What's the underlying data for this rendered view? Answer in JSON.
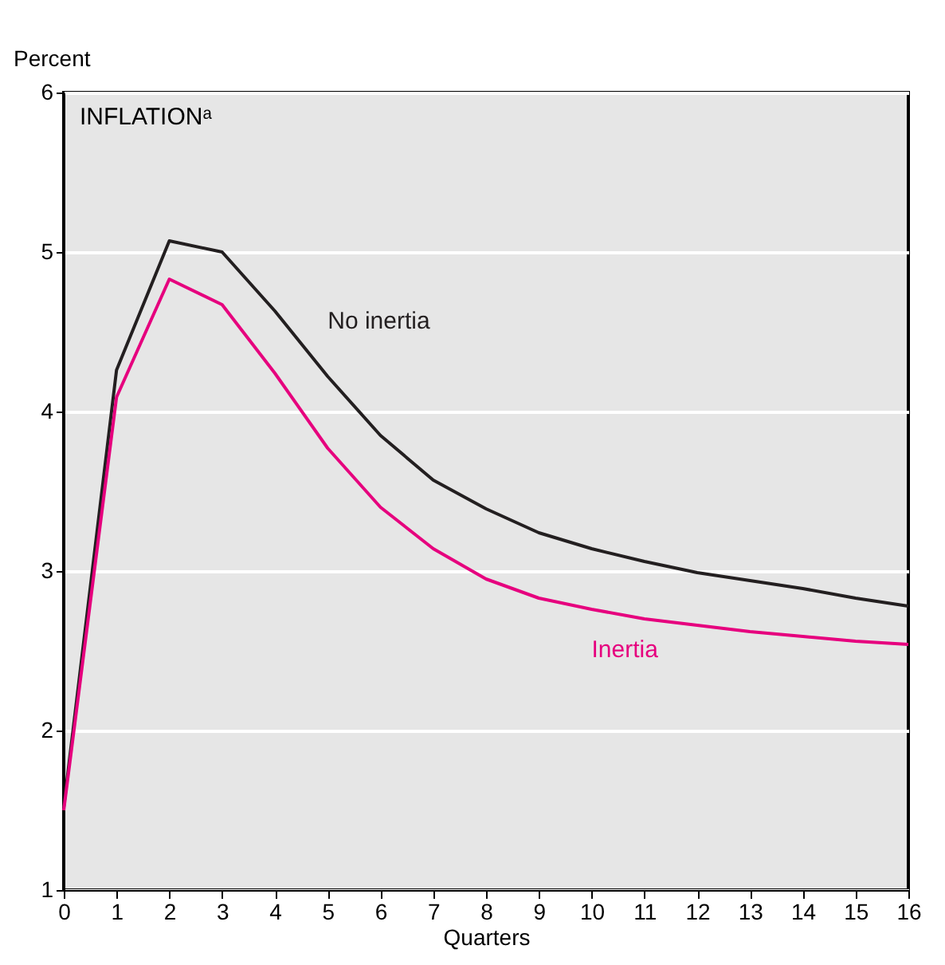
{
  "chart_data": {
    "type": "line",
    "ylabel": "Percent",
    "xlabel": "Quarters",
    "annotations": [
      "INFLATIONᵃ"
    ],
    "x": [
      0,
      1,
      2,
      3,
      4,
      5,
      6,
      7,
      8,
      9,
      10,
      11,
      12,
      13,
      14,
      15,
      16
    ],
    "series": [
      {
        "name": "No inertia",
        "color": "#231f20",
        "values": [
          1.52,
          4.26,
          5.07,
          5.0,
          4.63,
          4.22,
          3.85,
          3.57,
          3.39,
          3.24,
          3.14,
          3.06,
          2.99,
          2.94,
          2.89,
          2.83,
          2.78
        ]
      },
      {
        "name": "Inertia",
        "color": "#e6007e",
        "values": [
          1.5,
          4.09,
          4.83,
          4.67,
          4.24,
          3.77,
          3.4,
          3.14,
          2.95,
          2.83,
          2.76,
          2.7,
          2.66,
          2.62,
          2.59,
          2.56,
          2.54
        ]
      }
    ],
    "xlim": [
      0,
      16
    ],
    "xticks": [
      0,
      1,
      2,
      3,
      4,
      5,
      6,
      7,
      8,
      9,
      10,
      11,
      12,
      13,
      14,
      15,
      16
    ],
    "ylim": [
      1,
      6
    ],
    "yticks": [
      1,
      2,
      3,
      4,
      5,
      6
    ],
    "grid": "y",
    "legend": false
  }
}
